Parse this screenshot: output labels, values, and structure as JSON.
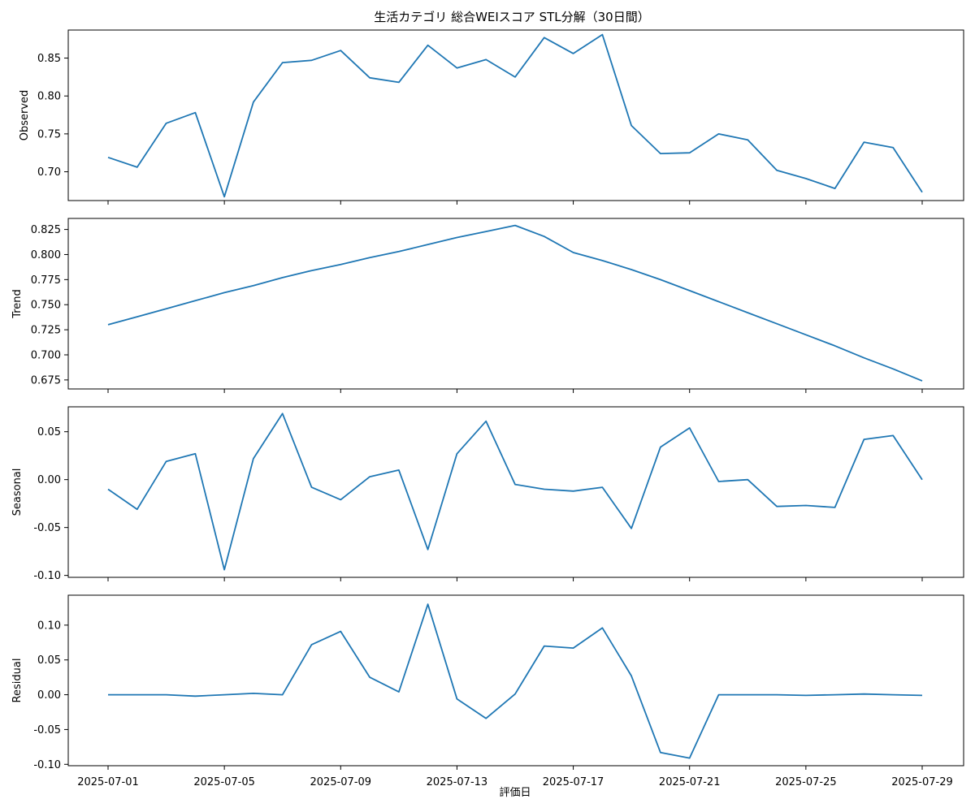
{
  "chart_data": {
    "type": "line",
    "title": "生活カテゴリ 総合WEIスコア STL分解（30日間）",
    "xlabel": "評価日",
    "line_color": "#1f77b4",
    "x": [
      "2025-07-01",
      "2025-07-02",
      "2025-07-03",
      "2025-07-04",
      "2025-07-05",
      "2025-07-06",
      "2025-07-07",
      "2025-07-08",
      "2025-07-09",
      "2025-07-10",
      "2025-07-11",
      "2025-07-12",
      "2025-07-13",
      "2025-07-14",
      "2025-07-15",
      "2025-07-16",
      "2025-07-17",
      "2025-07-18",
      "2025-07-19",
      "2025-07-20",
      "2025-07-21",
      "2025-07-22",
      "2025-07-23",
      "2025-07-24",
      "2025-07-25",
      "2025-07-26",
      "2025-07-27",
      "2025-07-28",
      "2025-07-29"
    ],
    "x_ticks": [
      "2025-07-01",
      "2025-07-05",
      "2025-07-09",
      "2025-07-13",
      "2025-07-17",
      "2025-07-21",
      "2025-07-25",
      "2025-07-29"
    ],
    "panels": [
      {
        "ylabel": "Observed",
        "ylim": [
          0.662,
          0.887
        ],
        "y_ticks": [
          "0.70",
          "0.75",
          "0.80",
          "0.85"
        ],
        "y_tick_values": [
          0.7,
          0.75,
          0.8,
          0.85
        ],
        "values": [
          0.719,
          0.706,
          0.764,
          0.778,
          0.667,
          0.792,
          0.844,
          0.847,
          0.86,
          0.824,
          0.818,
          0.867,
          0.837,
          0.848,
          0.825,
          0.877,
          0.856,
          0.881,
          0.761,
          0.724,
          0.725,
          0.75,
          0.742,
          0.702,
          0.691,
          0.678,
          0.739,
          0.732,
          0.673
        ]
      },
      {
        "ylabel": "Trend",
        "ylim": [
          0.666,
          0.836
        ],
        "y_ticks": [
          "0.675",
          "0.700",
          "0.725",
          "0.750",
          "0.775",
          "0.800",
          "0.825"
        ],
        "y_tick_values": [
          0.675,
          0.7,
          0.725,
          0.75,
          0.775,
          0.8,
          0.825
        ],
        "values": [
          0.73,
          0.738,
          0.746,
          0.754,
          0.762,
          0.769,
          0.777,
          0.784,
          0.79,
          0.797,
          0.803,
          0.81,
          0.817,
          0.823,
          0.829,
          0.818,
          0.802,
          0.794,
          0.785,
          0.775,
          0.764,
          0.753,
          0.742,
          0.731,
          0.72,
          0.709,
          0.697,
          0.686,
          0.674
        ]
      },
      {
        "ylabel": "Seasonal",
        "ylim": [
          -0.102,
          0.076
        ],
        "y_ticks": [
          "0.05",
          "0.00",
          "-0.05",
          "-0.10"
        ],
        "y_tick_values": [
          0.05,
          0.0,
          -0.05,
          -0.1
        ],
        "values": [
          -0.01,
          -0.031,
          0.019,
          0.027,
          -0.094,
          0.022,
          0.069,
          -0.008,
          -0.021,
          0.003,
          0.01,
          -0.073,
          0.027,
          0.061,
          -0.005,
          -0.01,
          -0.012,
          -0.008,
          -0.051,
          0.034,
          0.054,
          -0.002,
          0.0,
          -0.028,
          -0.027,
          -0.029,
          0.042,
          0.046,
          0.0
        ]
      },
      {
        "ylabel": "Residual",
        "ylim": [
          -0.102,
          0.143
        ],
        "y_ticks": [
          "0.10",
          "0.05",
          "0.00",
          "-0.05",
          "-0.10"
        ],
        "y_tick_values": [
          0.1,
          0.05,
          0.0,
          -0.05,
          -0.1
        ],
        "values": [
          0.0,
          0.0,
          0.0,
          -0.002,
          0.0,
          0.002,
          0.0,
          0.072,
          0.091,
          0.025,
          0.004,
          0.13,
          -0.006,
          -0.034,
          0.001,
          0.07,
          0.067,
          0.096,
          0.027,
          -0.083,
          -0.091,
          0.0,
          0.0,
          0.0,
          -0.001,
          0.0,
          0.001,
          0.0,
          -0.001
        ]
      }
    ]
  }
}
